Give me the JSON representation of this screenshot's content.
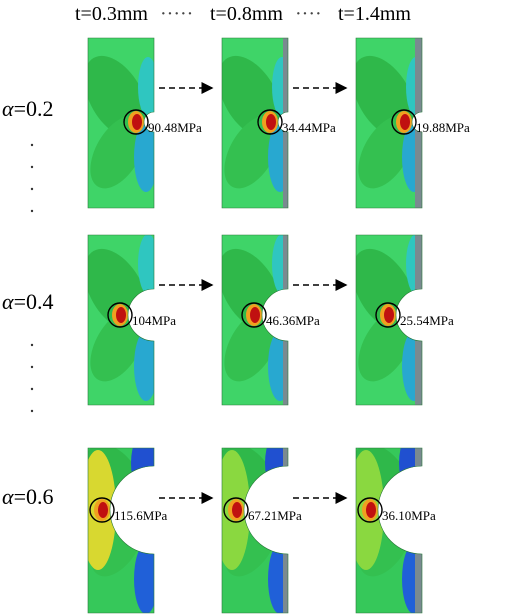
{
  "header": {
    "columns": [
      "t=0.3mm",
      "t=0.8mm",
      "t=1.4mm"
    ]
  },
  "rows": [
    {
      "symbol": "α",
      "label": "=0.2",
      "stresses": [
        "90.48MPa",
        "34.44MPa",
        "19.88MPa"
      ]
    },
    {
      "symbol": "α",
      "label": "=0.4",
      "stresses": [
        "104MPa",
        "46.36MPa",
        "25.54MPa"
      ]
    },
    {
      "symbol": "α",
      "label": "=0.6",
      "stresses": [
        "115.6MPa",
        "67.21MPa",
        "36.10MPa"
      ]
    }
  ]
}
